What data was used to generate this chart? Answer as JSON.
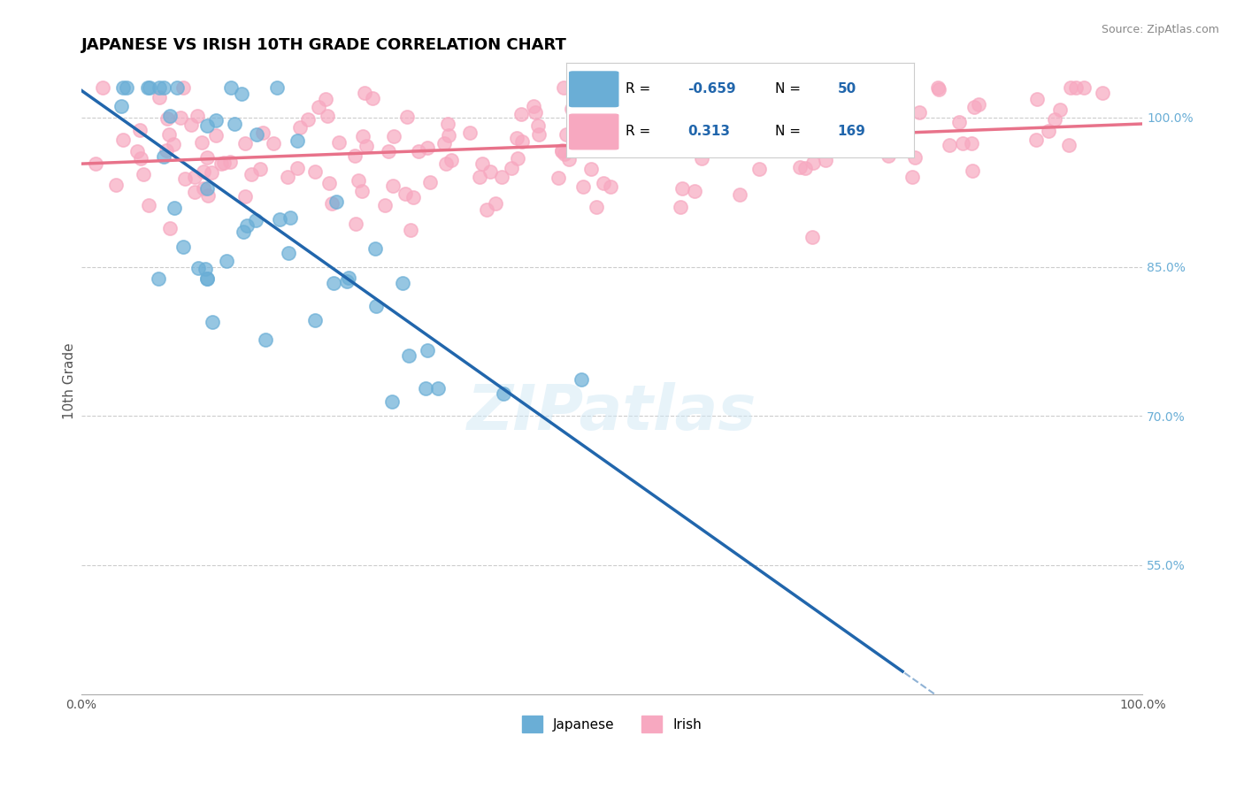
{
  "title": "JAPANESE VS IRISH 10TH GRADE CORRELATION CHART",
  "source_text": "Source: ZipAtlas.com",
  "xlabel": "",
  "ylabel": "10th Grade",
  "xlim": [
    0.0,
    1.0
  ],
  "ylim": [
    0.42,
    1.05
  ],
  "yticks": [
    0.55,
    0.7,
    0.85,
    1.0
  ],
  "ytick_labels": [
    "55.0%",
    "70.0%",
    "85.0%",
    "100.0%"
  ],
  "xtick_labels": [
    "0.0%",
    "100.0%"
  ],
  "xticks": [
    0.0,
    1.0
  ],
  "japanese_R": -0.659,
  "japanese_N": 50,
  "irish_R": 0.313,
  "irish_N": 169,
  "japanese_color": "#6aaed6",
  "irish_color": "#f7a8c0",
  "japanese_line_color": "#2166ac",
  "irish_line_color": "#e8728a",
  "watermark_text": "ZIPatlas",
  "background_color": "#ffffff",
  "grid_color": "#cccccc",
  "title_fontsize": 13,
  "label_fontsize": 11,
  "legend_fontsize": 11
}
